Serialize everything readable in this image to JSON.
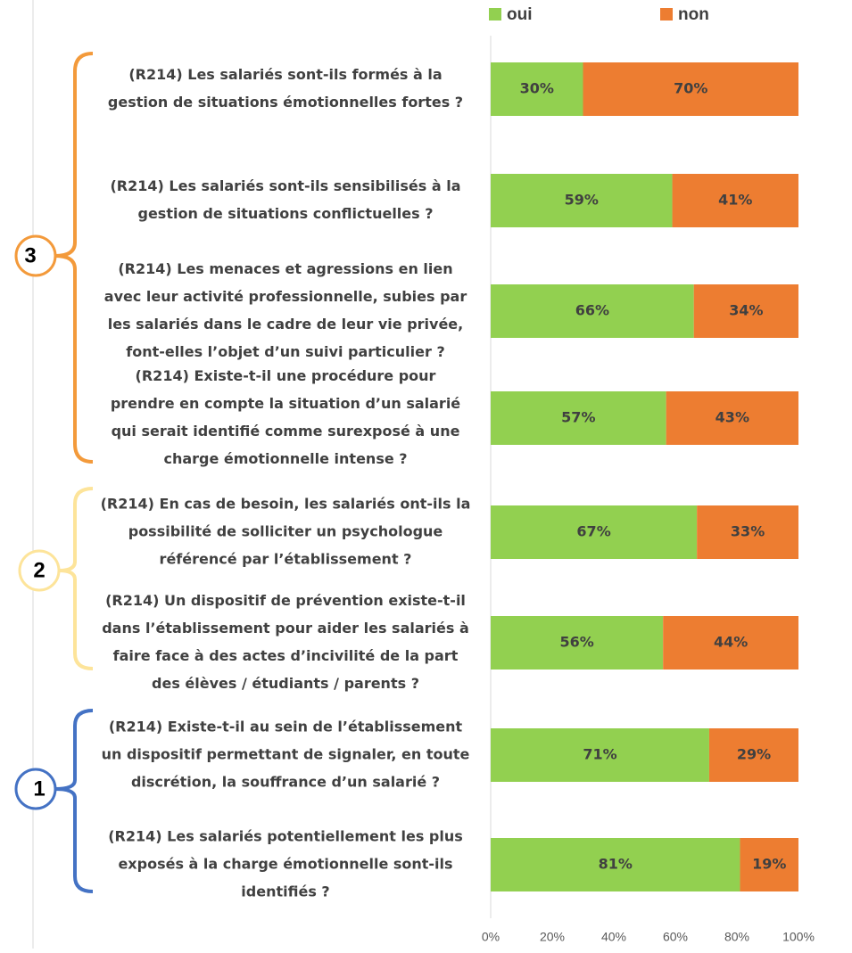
{
  "chart_data": {
    "type": "stacked_barh",
    "categories": [
      [
        "(R214) Les salariés sont-ils formés à la",
        "gestion de situations émotionnelles fortes ?"
      ],
      [
        "(R214) Les salariés sont-ils sensibilisés à la",
        "gestion de situations conflictuelles ?"
      ],
      [
        "(R214) Les menaces et agressions en lien",
        "avec leur activité professionnelle, subies par",
        "les salariés dans le cadre de leur vie privée,",
        "font-elles l’objet d’un suivi particulier ?"
      ],
      [
        "(R214) Existe-t-il une procédure pour",
        "prendre en compte la situation d’un salarié",
        "qui serait identifié comme surexposé à une",
        "charge émotionnelle intense ?"
      ],
      [
        "(R214) En cas de besoin, les salariés ont-ils la",
        "possibilité de solliciter un psychologue",
        "référencé par l’établissement ?"
      ],
      [
        "(R214) Un dispositif de prévention existe-t-il",
        "dans l’établissement pour aider les salariés à",
        "faire face à des actes d’incivilité de la part",
        "des élèves / étudiants / parents ?"
      ],
      [
        "(R214) Existe-t-il au sein de l’établissement",
        "un dispositif permettant de signaler, en toute",
        "discrétion, la souffrance d’un salarié ?"
      ],
      [
        "(R214) Les salariés potentiellement les plus",
        "exposés à la charge émotionnelle sont-ils",
        "identifiés ?"
      ]
    ],
    "series": [
      {
        "name": "oui",
        "color": "#92d050",
        "values": [
          30,
          59,
          66,
          57,
          67,
          56,
          71,
          81
        ],
        "value_labels": [
          "30%",
          "59%",
          "66%",
          "57%",
          "67%",
          "56%",
          "71%",
          "81%"
        ]
      },
      {
        "name": "non",
        "color": "#ed7d31",
        "values": [
          70,
          41,
          34,
          43,
          33,
          44,
          29,
          19
        ],
        "value_labels": [
          "70%",
          "41%",
          "34%",
          "43%",
          "33%",
          "44%",
          "29%",
          "19%"
        ]
      }
    ],
    "xlim": [
      0,
      100
    ],
    "xticks": [
      {
        "value": 0,
        "label": "0%"
      },
      {
        "value": 20,
        "label": "20%"
      },
      {
        "value": 40,
        "label": "40%"
      },
      {
        "value": 60,
        "label": "60%"
      },
      {
        "value": 80,
        "label": "80%"
      },
      {
        "value": 100,
        "label": "100%"
      }
    ],
    "grid": false,
    "legend": "top",
    "annotations": [
      "3",
      "2",
      "1"
    ]
  }
}
